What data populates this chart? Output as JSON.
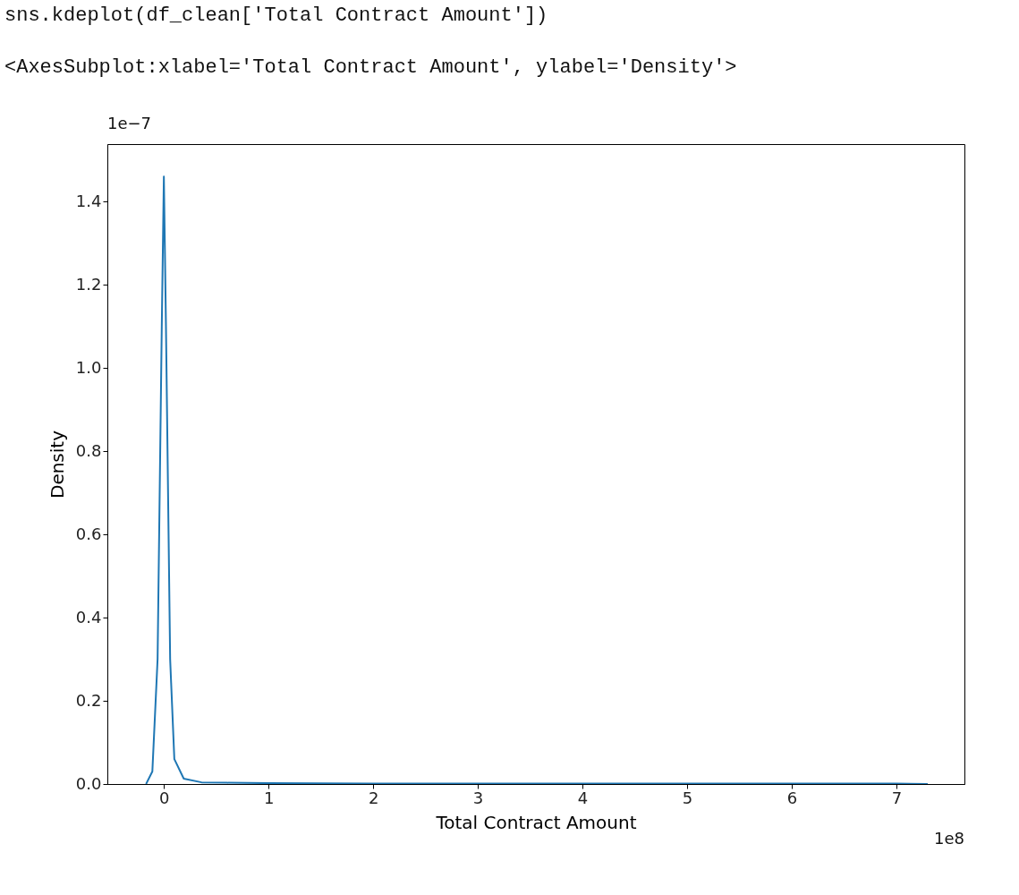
{
  "chart_data": {
    "type": "line",
    "xlabel": "Total Contract Amount",
    "ylabel": "Density",
    "annotations": [
      "sns.kdeplot(df_clean['Total Contract Amount'])",
      "<AxesSubplot:xlabel='Total Contract Amount', ylabel='Density'>",
      "1e−7",
      "1e8"
    ],
    "series": [
      {
        "color": "#1f77b4",
        "x": [
          -0.17,
          -0.11,
          -0.06,
          -0.02,
          0.0,
          0.02,
          0.06,
          0.1,
          0.19,
          0.36,
          0.6,
          1.0,
          2.0,
          3.0,
          4.0,
          5.0,
          6.0,
          7.0,
          7.3
        ],
        "values": [
          0.0,
          0.03,
          0.3,
          1.1,
          1.46,
          1.1,
          0.3,
          0.06,
          0.013,
          0.004,
          0.003,
          0.002,
          0.001,
          0.001,
          0.001,
          0.001,
          0.001,
          0.001,
          0.0
        ]
      }
    ],
    "xlim": [
      -0.54,
      7.65
    ],
    "ylim": [
      0,
      1.538
    ],
    "xticks": [
      0,
      1,
      2,
      3,
      4,
      5,
      6,
      7
    ],
    "yticks": [
      {
        "value": 0,
        "label": "0.0"
      },
      0.2,
      0.4,
      0.6,
      0.8,
      {
        "value": 1,
        "label": "1.0"
      },
      1.2,
      1.4
    ],
    "grid": false,
    "marker": "none",
    "line_style": "solid"
  }
}
